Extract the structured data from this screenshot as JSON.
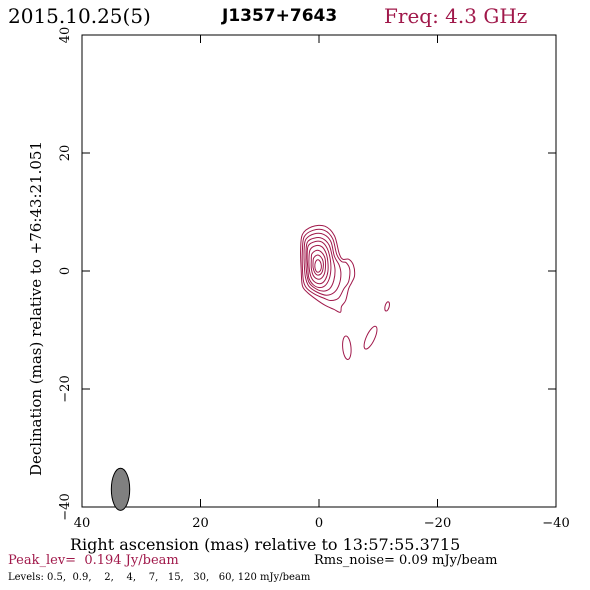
{
  "header": {
    "date": "2015.10.25(5)",
    "source": "J1357+7643",
    "freq": "Freq: 4.3 GHz"
  },
  "footer": {
    "peak": "Peak_lev=  0.194 Jy/beam",
    "rms": "Rms_noise= 0.09 mJy/beam",
    "levels": "Levels: 0.5,  0.9,    2,    4,    7,   15,   30,   60, 120 mJy/beam"
  },
  "colors": {
    "contour": "#a0184a",
    "freq_text": "#a0184a",
    "beam_fill": "#808080"
  },
  "chart_data": {
    "type": "contour",
    "title": "",
    "xlabel": "Right ascension (mas) relative to 13:57:55.3715",
    "ylabel": "Declination (mas) relative to +76:43:21.051",
    "xlim": [
      40,
      -40
    ],
    "ylim": [
      -40,
      40
    ],
    "x_ticks": [
      40,
      20,
      0,
      -20,
      -40
    ],
    "y_ticks": [
      -40,
      -20,
      0,
      20,
      40
    ],
    "x_tick_labels": [
      "40",
      "20",
      "0",
      "−20",
      "−40"
    ],
    "y_tick_labels": [
      "−40",
      "−20",
      "0",
      "20",
      "40"
    ],
    "grid": false,
    "contour_levels_mJy": [
      0.5,
      0.9,
      2,
      4,
      7,
      15,
      30,
      60,
      120
    ],
    "peak_Jy_per_beam": 0.194,
    "rms_mJy_per_beam": 0.09,
    "beam": {
      "x": 33.5,
      "y": -37.0,
      "major_mas": 4.6,
      "minor_mas": 2.0,
      "pa_deg": 0
    },
    "core": {
      "x": 0.2,
      "y": 0.5
    },
    "nested_contours": [
      {
        "level": 0.5,
        "points": [
          [
            2.8,
            6.2
          ],
          [
            1.2,
            7.5
          ],
          [
            -1.0,
            7.6
          ],
          [
            -2.6,
            6.0
          ],
          [
            -3.4,
            3.0
          ],
          [
            -4.0,
            2.0
          ],
          [
            -5.0,
            2.0
          ],
          [
            -5.8,
            1.0
          ],
          [
            -6.0,
            -0.8
          ],
          [
            -5.5,
            -2.0
          ],
          [
            -5.0,
            -3.0
          ],
          [
            -4.5,
            -5.0
          ],
          [
            -3.8,
            -6.0
          ],
          [
            -3.6,
            -7.0
          ],
          [
            -2.5,
            -6.5
          ],
          [
            -1.0,
            -5.8
          ],
          [
            0.5,
            -4.8
          ],
          [
            2.0,
            -3.6
          ],
          [
            2.8,
            -2.5
          ],
          [
            3.0,
            0.0
          ],
          [
            3.1,
            3.5
          ]
        ]
      },
      {
        "level": 0.9,
        "points": [
          [
            2.5,
            5.8
          ],
          [
            1.0,
            6.9
          ],
          [
            -0.9,
            6.9
          ],
          [
            -2.3,
            5.5
          ],
          [
            -3.0,
            2.8
          ],
          [
            -3.8,
            1.6
          ],
          [
            -4.6,
            1.4
          ],
          [
            -5.2,
            0.2
          ],
          [
            -5.0,
            -1.8
          ],
          [
            -4.2,
            -3.0
          ],
          [
            -3.3,
            -4.6
          ],
          [
            -2.0,
            -5.0
          ],
          [
            -0.8,
            -4.6
          ],
          [
            0.6,
            -4.0
          ],
          [
            2.0,
            -3.0
          ],
          [
            2.6,
            -1.8
          ],
          [
            2.8,
            0.5
          ],
          [
            2.8,
            3.5
          ]
        ]
      },
      {
        "level": 2,
        "points": [
          [
            2.2,
            5.4
          ],
          [
            0.8,
            6.3
          ],
          [
            -0.8,
            6.2
          ],
          [
            -2.0,
            5.0
          ],
          [
            -2.6,
            2.5
          ],
          [
            -3.4,
            1.0
          ],
          [
            -3.7,
            -0.5
          ],
          [
            -3.4,
            -2.3
          ],
          [
            -2.6,
            -3.6
          ],
          [
            -1.3,
            -4.1
          ],
          [
            0.3,
            -3.6
          ],
          [
            1.7,
            -2.6
          ],
          [
            2.3,
            -1.0
          ],
          [
            2.5,
            1.5
          ],
          [
            2.5,
            3.8
          ]
        ]
      },
      {
        "level": 4,
        "points": [
          [
            2.0,
            4.8
          ],
          [
            0.7,
            5.6
          ],
          [
            -0.6,
            5.5
          ],
          [
            -1.7,
            4.4
          ],
          [
            -2.3,
            2.2
          ],
          [
            -2.7,
            0.3
          ],
          [
            -2.5,
            -1.6
          ],
          [
            -1.8,
            -3.0
          ],
          [
            -0.6,
            -3.4
          ],
          [
            0.7,
            -2.9
          ],
          [
            1.7,
            -1.9
          ],
          [
            2.1,
            -0.2
          ],
          [
            2.2,
            2.2
          ]
        ]
      },
      {
        "level": 7,
        "points": [
          [
            1.8,
            4.3
          ],
          [
            0.6,
            5.0
          ],
          [
            -0.5,
            4.9
          ],
          [
            -1.4,
            3.8
          ],
          [
            -1.9,
            2.0
          ],
          [
            -2.0,
            0.2
          ],
          [
            -1.7,
            -1.4
          ],
          [
            -1.0,
            -2.5
          ],
          [
            0.0,
            -2.8
          ],
          [
            1.0,
            -2.3
          ],
          [
            1.7,
            -1.2
          ],
          [
            1.9,
            0.6
          ],
          [
            2.0,
            2.5
          ]
        ]
      },
      {
        "level": 15,
        "points": [
          [
            1.5,
            3.6
          ],
          [
            0.5,
            4.3
          ],
          [
            -0.5,
            4.1
          ],
          [
            -1.2,
            3.0
          ],
          [
            -1.5,
            1.5
          ],
          [
            -1.5,
            -0.1
          ],
          [
            -1.1,
            -1.4
          ],
          [
            -0.4,
            -2.1
          ],
          [
            0.5,
            -2.0
          ],
          [
            1.2,
            -1.3
          ],
          [
            1.6,
            0.0
          ],
          [
            1.7,
            1.8
          ]
        ]
      },
      {
        "level": 30,
        "points": [
          [
            1.2,
            2.9
          ],
          [
            0.4,
            3.5
          ],
          [
            -0.4,
            3.2
          ],
          [
            -1.0,
            2.2
          ],
          [
            -1.1,
            0.8
          ],
          [
            -0.9,
            -0.5
          ],
          [
            -0.3,
            -1.3
          ],
          [
            0.4,
            -1.3
          ],
          [
            1.0,
            -0.7
          ],
          [
            1.3,
            0.5
          ],
          [
            1.3,
            1.8
          ]
        ]
      },
      {
        "level": 60,
        "points": [
          [
            0.9,
            2.2
          ],
          [
            0.3,
            2.7
          ],
          [
            -0.3,
            2.4
          ],
          [
            -0.7,
            1.6
          ],
          [
            -0.7,
            0.5
          ],
          [
            -0.4,
            -0.4
          ],
          [
            0.2,
            -0.7
          ],
          [
            0.7,
            -0.3
          ],
          [
            1.0,
            0.6
          ],
          [
            1.0,
            1.5
          ]
        ]
      },
      {
        "level": 120,
        "points": [
          [
            0.6,
            1.5
          ],
          [
            0.2,
            1.9
          ],
          [
            -0.2,
            1.6
          ],
          [
            -0.4,
            0.9
          ],
          [
            -0.3,
            0.2
          ],
          [
            0.1,
            -0.2
          ],
          [
            0.5,
            0.0
          ],
          [
            0.7,
            0.7
          ]
        ]
      }
    ],
    "blobs": [
      {
        "x": -4.7,
        "y": -13.0,
        "rx": 0.7,
        "ry": 2.0,
        "rot": -5
      },
      {
        "x": -8.7,
        "y": -11.3,
        "rx": 0.7,
        "ry": 2.1,
        "rot": 25
      },
      {
        "x": -11.5,
        "y": -6.0,
        "rx": 0.35,
        "ry": 0.8,
        "rot": 15
      }
    ]
  }
}
